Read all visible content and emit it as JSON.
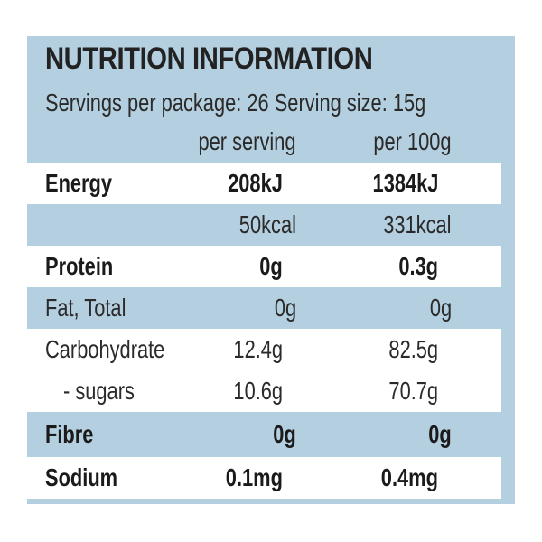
{
  "title": "NUTRITION INFORMATION",
  "servings_line": "Servings per package: 26 Serving size: 15g",
  "headers": {
    "per_serving": "per serving",
    "per_100g": "per 100g"
  },
  "rows": [
    {
      "label": "Energy",
      "per_serving": "208kJ",
      "per_100g": "1384kJ"
    },
    {
      "label": "",
      "per_serving": "50kcal",
      "per_100g": "331kcal"
    },
    {
      "label": "Protein",
      "per_serving": "0g",
      "per_100g": "0.3g"
    },
    {
      "label": "Fat, Total",
      "per_serving": "0g",
      "per_100g": "0g"
    },
    {
      "label": "Carbohydrate",
      "per_serving": "12.4g",
      "per_100g": "82.5g"
    },
    {
      "label": "- sugars",
      "per_serving": "10.6g",
      "per_100g": "70.7g"
    },
    {
      "label": "Fibre",
      "per_serving": "0g",
      "per_100g": "0g"
    },
    {
      "label": "Sodium",
      "per_serving": "0.1mg",
      "per_100g": "0.4mg"
    }
  ],
  "colors": {
    "panel": "#b4cfdf",
    "highlight_row": "#ffffff",
    "text": "#1f1f1f"
  }
}
